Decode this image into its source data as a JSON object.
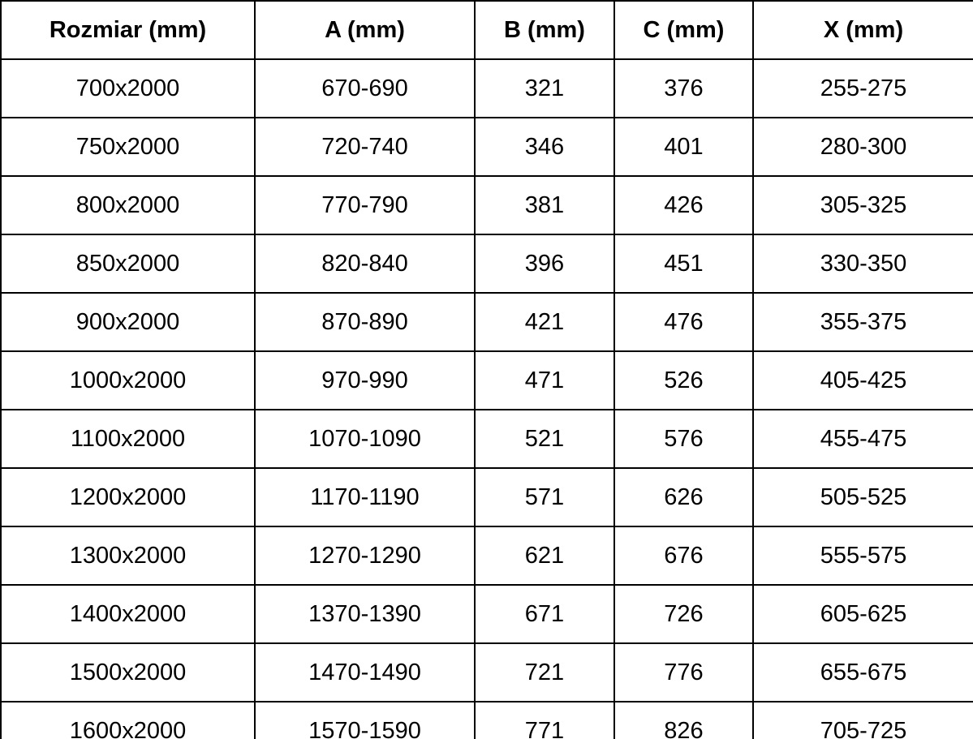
{
  "table": {
    "name": "shower-enclosure-size-table",
    "headers": [
      "Rozmiar (mm)",
      "A (mm)",
      "B (mm)",
      "C (mm)",
      "X (mm)"
    ],
    "rows": [
      [
        "700x2000",
        "670-690",
        "321",
        "376",
        "255-275"
      ],
      [
        "750x2000",
        "720-740",
        "346",
        "401",
        "280-300"
      ],
      [
        "800x2000",
        "770-790",
        "381",
        "426",
        "305-325"
      ],
      [
        "850x2000",
        "820-840",
        "396",
        "451",
        "330-350"
      ],
      [
        "900x2000",
        "870-890",
        "421",
        "476",
        "355-375"
      ],
      [
        "1000x2000",
        "970-990",
        "471",
        "526",
        "405-425"
      ],
      [
        "1100x2000",
        "1070-1090",
        "521",
        "576",
        "455-475"
      ],
      [
        "1200x2000",
        "1170-1190",
        "571",
        "626",
        "505-525"
      ],
      [
        "1300x2000",
        "1270-1290",
        "621",
        "676",
        "555-575"
      ],
      [
        "1400x2000",
        "1370-1390",
        "671",
        "726",
        "605-625"
      ],
      [
        "1500x2000",
        "1470-1490",
        "721",
        "776",
        "655-675"
      ],
      [
        "1600x2000",
        "1570-1590",
        "771",
        "826",
        "705-725"
      ]
    ],
    "colors": {
      "border": "#000000",
      "text": "#000000",
      "background": "#ffffff"
    }
  }
}
